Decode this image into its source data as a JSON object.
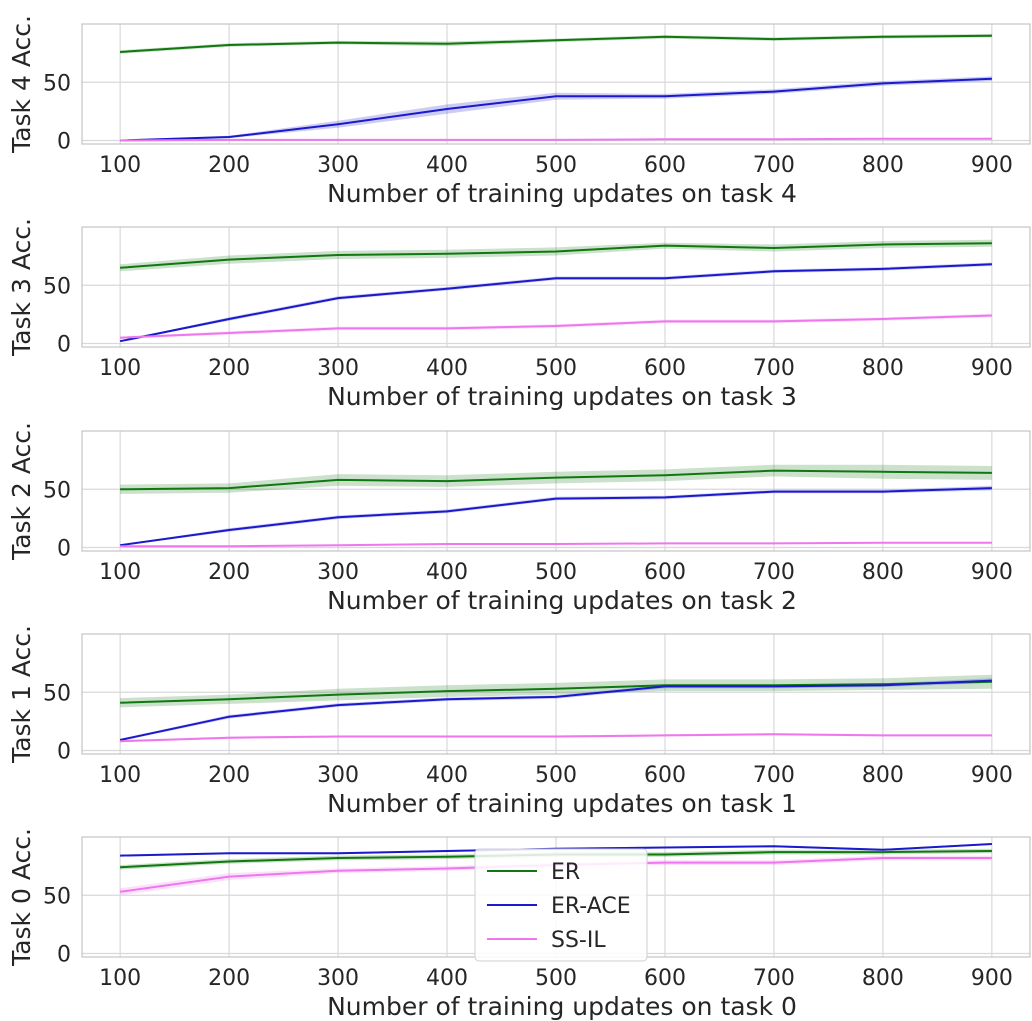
{
  "chart_data": [
    {
      "type": "line",
      "xlabel": "Number of training updates on task 4",
      "ylabel": "Task 4 Acc.",
      "x": [
        100,
        200,
        300,
        400,
        500,
        600,
        700,
        800,
        900
      ],
      "xlim": [
        65,
        935
      ],
      "ylim": [
        -3,
        100
      ],
      "yticks": [
        0,
        50
      ],
      "grid": true,
      "series": [
        {
          "name": "ER",
          "values": [
            76,
            82,
            84,
            83,
            86,
            89,
            87,
            89,
            90
          ],
          "band": [
            1.5,
            1.5,
            1.5,
            2,
            1.5,
            1.5,
            1.5,
            1.5,
            1.5
          ]
        },
        {
          "name": "ER-ACE",
          "values": [
            0,
            3,
            14,
            27,
            38,
            38,
            42,
            49,
            53
          ],
          "band": [
            0.5,
            1,
            3,
            4,
            3,
            2,
            2,
            2,
            2
          ]
        },
        {
          "name": "SS-IL",
          "values": [
            0,
            0.5,
            0.5,
            0.5,
            0.5,
            1,
            1,
            1.5,
            1.5
          ],
          "band": [
            0.3,
            0.3,
            0.3,
            0.3,
            0.3,
            0.3,
            0.3,
            0.3,
            0.3
          ]
        }
      ]
    },
    {
      "type": "line",
      "xlabel": "Number of training updates on task 3",
      "ylabel": "Task 3 Acc.",
      "x": [
        100,
        200,
        300,
        400,
        500,
        600,
        700,
        800,
        900
      ],
      "xlim": [
        65,
        935
      ],
      "ylim": [
        -3,
        100
      ],
      "yticks": [
        0,
        50
      ],
      "grid": true,
      "series": [
        {
          "name": "ER",
          "values": [
            65,
            72,
            76,
            77,
            79,
            84,
            82,
            85,
            86
          ],
          "band": [
            3,
            3.5,
            3.5,
            3.5,
            3.5,
            2.5,
            3,
            3,
            3
          ]
        },
        {
          "name": "ER-ACE",
          "values": [
            2,
            21,
            39,
            47,
            56,
            56,
            62,
            64,
            68
          ],
          "band": [
            0.5,
            1.5,
            1.5,
            1.5,
            1.5,
            1.5,
            1.5,
            1.5,
            1.5
          ]
        },
        {
          "name": "SS-IL",
          "values": [
            5,
            9,
            13,
            13,
            15,
            19,
            19,
            21,
            24
          ],
          "band": [
            1,
            1.5,
            1.5,
            1.5,
            1.5,
            1.5,
            1.5,
            1.5,
            1.5
          ]
        }
      ]
    },
    {
      "type": "line",
      "xlabel": "Number of training updates on task 2",
      "ylabel": "Task 2 Acc.",
      "x": [
        100,
        200,
        300,
        400,
        500,
        600,
        700,
        800,
        900
      ],
      "xlim": [
        65,
        935
      ],
      "ylim": [
        -3,
        100
      ],
      "yticks": [
        0,
        50
      ],
      "grid": true,
      "series": [
        {
          "name": "ER",
          "values": [
            50,
            51,
            58,
            57,
            60,
            62,
            66,
            65,
            64
          ],
          "band": [
            4,
            4,
            5,
            5,
            5,
            5,
            5,
            6,
            6
          ]
        },
        {
          "name": "ER-ACE",
          "values": [
            2,
            15,
            26,
            31,
            42,
            43,
            48,
            48,
            51
          ],
          "band": [
            0.5,
            1.5,
            1.5,
            1.5,
            1.5,
            1.5,
            1.5,
            1.5,
            2
          ]
        },
        {
          "name": "SS-IL",
          "values": [
            1,
            1,
            2,
            3,
            3,
            3.5,
            3.5,
            4,
            4
          ],
          "band": [
            0.3,
            0.3,
            0.3,
            0.3,
            0.3,
            0.3,
            0.3,
            0.3,
            0.3
          ]
        }
      ]
    },
    {
      "type": "line",
      "xlabel": "Number of training updates on task 1",
      "ylabel": "Task 1 Acc.",
      "x": [
        100,
        200,
        300,
        400,
        500,
        600,
        700,
        800,
        900
      ],
      "xlim": [
        65,
        935
      ],
      "ylim": [
        -3,
        100
      ],
      "yticks": [
        0,
        50
      ],
      "grid": true,
      "series": [
        {
          "name": "ER",
          "values": [
            41,
            44,
            48,
            51,
            53,
            56,
            56,
            57,
            59
          ],
          "band": [
            4,
            4,
            5,
            5,
            5,
            5,
            5,
            5,
            6
          ]
        },
        {
          "name": "ER-ACE",
          "values": [
            9,
            29,
            39,
            44,
            46,
            55,
            55,
            56,
            60
          ],
          "band": [
            1,
            1.5,
            1.5,
            1.5,
            1.5,
            1.5,
            1.5,
            1.5,
            2
          ]
        },
        {
          "name": "SS-IL",
          "values": [
            8,
            11,
            12,
            12,
            12,
            13,
            14,
            13,
            13
          ],
          "band": [
            1,
            1,
            1,
            1,
            1,
            1,
            1,
            1,
            1
          ]
        }
      ]
    },
    {
      "type": "line",
      "xlabel": "Number of training updates on task 0",
      "ylabel": "Task 0 Acc.",
      "x": [
        100,
        200,
        300,
        400,
        500,
        600,
        700,
        800,
        900
      ],
      "xlim": [
        65,
        935
      ],
      "ylim": [
        -3,
        100
      ],
      "yticks": [
        0,
        50
      ],
      "grid": true,
      "legend": "center",
      "series": [
        {
          "name": "ER",
          "values": [
            74,
            79,
            82,
            83,
            85,
            85,
            87,
            87,
            88
          ],
          "band": [
            2,
            2,
            2,
            2,
            2,
            2,
            2,
            2,
            2
          ]
        },
        {
          "name": "ER-ACE",
          "values": [
            84,
            86,
            86,
            88,
            90,
            91,
            92,
            89,
            94
          ],
          "band": [
            0.8,
            0.8,
            0.8,
            0.8,
            0.8,
            0.8,
            0.8,
            0.8,
            0.8
          ]
        },
        {
          "name": "SS-IL",
          "values": [
            53,
            66,
            71,
            73,
            76,
            78,
            78,
            82,
            82
          ],
          "band": [
            3,
            3,
            2,
            2,
            2,
            2,
            2,
            2,
            2
          ]
        }
      ]
    }
  ],
  "colors": {
    "ER": "#117711",
    "ER-ACE": "#1a1acc",
    "SS-IL": "#ee77ee",
    "grid": "#d9d9dd",
    "spine": "#c4c4c8"
  }
}
